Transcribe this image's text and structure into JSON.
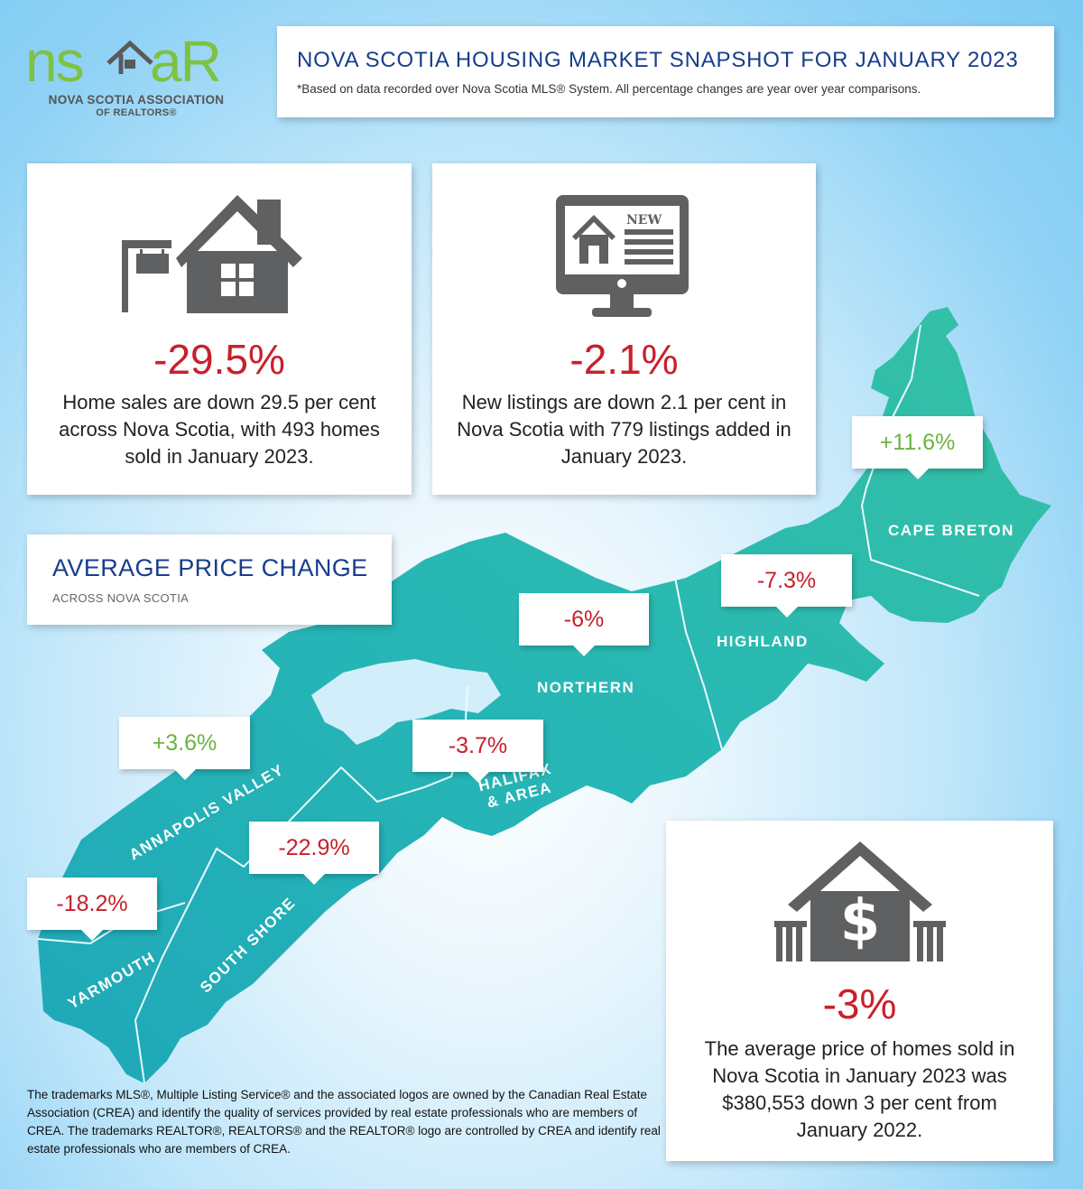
{
  "logo": {
    "wordmark": "nsaR",
    "line1": "NOVA SCOTIA ASSOCIATION",
    "line2": "OF REALTORS®",
    "color_green": "#7dc242",
    "color_gray": "#5a5a5a"
  },
  "header": {
    "title": "NOVA SCOTIA HOUSING MARKET SNAPSHOT FOR JANUARY 2023",
    "subtitle": "*Based on data recorded over Nova Scotia MLS® System. All percentage changes are year over year comparisons."
  },
  "sales": {
    "icon": "house-for-sale-icon",
    "value": "-29.5%",
    "text": "Home sales are down 29.5 per cent across Nova Scotia, with 493 homes sold in January 2023."
  },
  "listings": {
    "icon": "computer-new-listing-icon",
    "icon_label": "NEW",
    "value": "-2.1%",
    "text": "New listings are down 2.1 per cent in Nova Scotia with 779 listings added in January 2023."
  },
  "avg_price_section": {
    "title": "AVERAGE PRICE CHANGE",
    "subtitle": "ACROSS NOVA SCOTIA"
  },
  "regions": [
    {
      "name": "CAPE BRETON",
      "change": "+11.6%",
      "direction": "up"
    },
    {
      "name": "HIGHLAND",
      "change": "-7.3%",
      "direction": "down"
    },
    {
      "name": "NORTHERN",
      "change": "-6%",
      "direction": "down"
    },
    {
      "name": "HALIFAX & AREA",
      "name_line1": "HALIFAX",
      "name_line2": "& AREA",
      "change": "-3.7%",
      "direction": "down"
    },
    {
      "name": "ANNAPOLIS VALLEY",
      "change": "+3.6%",
      "direction": "up"
    },
    {
      "name": "SOUTH SHORE",
      "change": "-22.9%",
      "direction": "down"
    },
    {
      "name": "YARMOUTH",
      "change": "-18.2%",
      "direction": "down"
    }
  ],
  "avg_price": {
    "icon": "house-dollar-icon",
    "value": "-3%",
    "text": "The average price of homes sold in Nova Scotia in January 2023 was $380,553 down 3 per cent from January 2022."
  },
  "footer": {
    "text": "The trademarks MLS®, Multiple Listing Service® and the associated logos are owned by the Canadian Real Estate Association (CREA) and identify the quality of services provided by real estate professionals who are members of CREA. The trademarks REALTOR®, REALTORS® and the REALTOR® logo are controlled by CREA and identify real estate professionals who are members of CREA."
  },
  "colors": {
    "title_blue": "#173d8c",
    "negative_red": "#c8202b",
    "positive_green": "#6cb33f",
    "map_teal": "#2ab7b4",
    "icon_gray": "#5f6062"
  }
}
